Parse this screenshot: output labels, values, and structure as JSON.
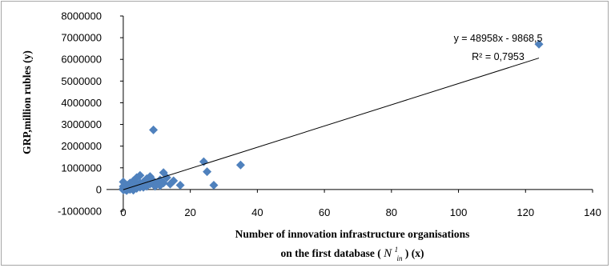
{
  "chart_data": {
    "type": "scatter",
    "title": "",
    "ylabel": "GRP,million  rubles (y)",
    "xlabel_line1": "Number  of innovation  infrastructure organisations",
    "xlabel_line2_prefix": "on  the first database  (",
    "xlabel_symbol": "N",
    "xlabel_sup": "1",
    "xlabel_sub": "in",
    "xlabel_line2_suffix": ") (x)",
    "xlim": [
      -5,
      140
    ],
    "ylim": [
      -1000000,
      8000000
    ],
    "x_ticks": [
      0,
      20,
      40,
      60,
      80,
      100,
      120,
      140
    ],
    "y_ticks": [
      -1000000,
      0,
      1000000,
      2000000,
      3000000,
      4000000,
      5000000,
      6000000,
      7000000,
      8000000
    ],
    "y_tick_labels": [
      "-1000000",
      "0",
      "1000000",
      "2000000",
      "3000000",
      "4000000",
      "5000000",
      "6000000",
      "7000000",
      "8000000"
    ],
    "grid": false,
    "legend": "none",
    "marker_color": "#4f81bd",
    "trendline": {
      "slope": 48958,
      "intercept": -9868.5,
      "x_range": [
        0,
        124
      ],
      "equation_text": "y = 48958x - 9868,5",
      "r2_text": "R² = 0,7953",
      "color": "#000000"
    },
    "points": [
      {
        "x": 124,
        "y": 6700000
      },
      {
        "x": 35,
        "y": 1130000
      },
      {
        "x": 27,
        "y": 200000
      },
      {
        "x": 25,
        "y": 820000
      },
      {
        "x": 24,
        "y": 1280000
      },
      {
        "x": 17,
        "y": 200000
      },
      {
        "x": 15,
        "y": 400000
      },
      {
        "x": 14,
        "y": 250000
      },
      {
        "x": 13,
        "y": 550000
      },
      {
        "x": 12,
        "y": 780000
      },
      {
        "x": 12,
        "y": 300000
      },
      {
        "x": 11,
        "y": 450000
      },
      {
        "x": 10,
        "y": 250000
      },
      {
        "x": 9,
        "y": 2750000
      },
      {
        "x": 9,
        "y": 400000
      },
      {
        "x": 8,
        "y": 600000
      },
      {
        "x": 8,
        "y": 250000
      },
      {
        "x": 7,
        "y": 500000
      },
      {
        "x": 7,
        "y": 150000
      },
      {
        "x": 6,
        "y": 350000
      },
      {
        "x": 6,
        "y": 100000
      },
      {
        "x": 5,
        "y": 650000
      },
      {
        "x": 5,
        "y": 300000
      },
      {
        "x": 5,
        "y": 100000
      },
      {
        "x": 4,
        "y": 550000
      },
      {
        "x": 4,
        "y": 250000
      },
      {
        "x": 4,
        "y": 50000
      },
      {
        "x": 3,
        "y": 400000
      },
      {
        "x": 3,
        "y": 150000
      },
      {
        "x": 3,
        "y": -30000
      },
      {
        "x": 2,
        "y": 300000
      },
      {
        "x": 2,
        "y": 120000
      },
      {
        "x": 2,
        "y": 0
      },
      {
        "x": 1,
        "y": 200000
      },
      {
        "x": 1,
        "y": 80000
      },
      {
        "x": 1,
        "y": -50000
      },
      {
        "x": 0,
        "y": 350000
      },
      {
        "x": 0,
        "y": 150000
      },
      {
        "x": 0,
        "y": 50000
      },
      {
        "x": 0,
        "y": -20000
      },
      {
        "x": 0.5,
        "y": 0
      },
      {
        "x": 1.5,
        "y": 20000
      },
      {
        "x": 6.5,
        "y": 200000
      },
      {
        "x": 9.5,
        "y": 150000
      },
      {
        "x": 11,
        "y": 180000
      }
    ]
  }
}
